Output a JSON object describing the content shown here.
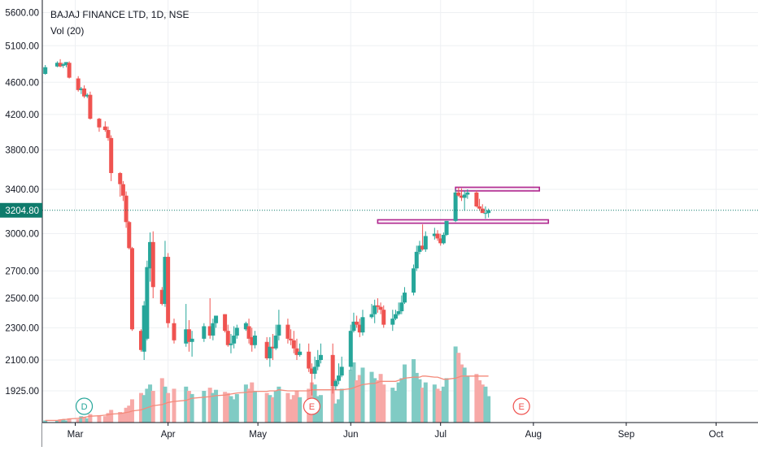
{
  "chart_data": {
    "type": "candlestick",
    "title": "BAJAJ FINANCE LTD, 1D, NSE",
    "volume_label": "Vol (20)",
    "y_ticks": [
      "5600.00",
      "5100.00",
      "4600.00",
      "4200.00",
      "3800.00",
      "3400.00",
      "3000.00",
      "2700.00",
      "2500.00",
      "2300.00",
      "2100.00",
      "1925.00"
    ],
    "y_log_scale": true,
    "ylim": [
      1760,
      5750
    ],
    "last_price": "3204.80",
    "x_ticks": [
      "Mar",
      "Apr",
      "May",
      "Jun",
      "Jul",
      "Aug",
      "Sep",
      "Oct"
    ],
    "x_tick_dates": [
      "2020-03-01",
      "2020-04-01",
      "2020-05-01",
      "2020-06-01",
      "2020-07-01",
      "2020-08-01",
      "2020-09-01",
      "2020-10-01"
    ],
    "xlim": [
      "2020-02-19",
      "2020-10-15"
    ],
    "grid": true,
    "colors": {
      "up": "#26a69a",
      "down": "#ef5350",
      "up_volume": "#80cbc4",
      "down_volume": "#f7a9a7",
      "volume_ma": "#f48a7a",
      "zone": "#b0278f",
      "zone_outer": "#c2185b",
      "price_line": "#0f7b6c"
    },
    "event_markers": [
      {
        "label": "D",
        "date": "2020-03-04",
        "kind": "dividend"
      },
      {
        "label": "E",
        "date": "2020-05-19",
        "kind": "earnings"
      },
      {
        "label": "E",
        "date": "2020-07-28",
        "kind": "earnings"
      }
    ],
    "zones": [
      {
        "name": "resistance",
        "date_from": "2020-07-06",
        "date_to": "2020-08-03",
        "price_top": 3420,
        "price_bottom": 3385
      },
      {
        "name": "support",
        "date_from": "2020-06-10",
        "date_to": "2020-08-06",
        "price_top": 3120,
        "price_bottom": 3090
      }
    ],
    "series": [
      {
        "date": [
          "2020-02-20",
          "2020-02-24",
          "2020-02-25",
          "2020-02-26",
          "2020-02-27",
          "2020-02-28",
          "2020-03-02",
          "2020-03-03",
          "2020-03-04",
          "2020-03-05",
          "2020-03-06",
          "2020-03-09",
          "2020-03-11",
          "2020-03-12",
          "2020-03-13",
          "2020-03-16",
          "2020-03-17",
          "2020-03-18",
          "2020-03-19",
          "2020-03-20",
          "2020-03-23",
          "2020-03-24",
          "2020-03-25",
          "2020-03-26",
          "2020-03-27",
          "2020-03-30",
          "2020-03-31",
          "2020-04-01",
          "2020-04-03",
          "2020-04-07",
          "2020-04-08",
          "2020-04-09",
          "2020-04-13",
          "2020-04-15",
          "2020-04-16",
          "2020-04-17",
          "2020-04-20",
          "2020-04-21",
          "2020-04-22",
          "2020-04-23",
          "2020-04-24",
          "2020-04-27",
          "2020-04-28",
          "2020-04-29",
          "2020-04-30",
          "2020-05-04",
          "2020-05-05",
          "2020-05-06",
          "2020-05-07",
          "2020-05-08",
          "2020-05-11",
          "2020-05-12",
          "2020-05-13",
          "2020-05-14",
          "2020-05-15",
          "2020-05-18",
          "2020-05-19",
          "2020-05-20",
          "2020-05-21",
          "2020-05-22",
          "2020-05-26",
          "2020-05-27",
          "2020-05-28",
          "2020-05-29",
          "2020-06-01",
          "2020-06-02",
          "2020-06-03",
          "2020-06-04",
          "2020-06-05",
          "2020-06-08",
          "2020-06-09",
          "2020-06-10",
          "2020-06-11",
          "2020-06-12",
          "2020-06-15",
          "2020-06-16",
          "2020-06-17",
          "2020-06-18",
          "2020-06-19",
          "2020-06-22",
          "2020-06-23",
          "2020-06-24",
          "2020-06-25",
          "2020-06-26",
          "2020-06-29",
          "2020-06-30",
          "2020-07-01",
          "2020-07-02",
          "2020-07-03",
          "2020-07-06",
          "2020-07-07",
          "2020-07-08",
          "2020-07-09",
          "2020-07-10",
          "2020-07-13",
          "2020-07-14",
          "2020-07-15",
          "2020-07-16",
          "2020-07-17"
        ],
        "open": [
          4710,
          4810,
          4860,
          4820,
          4830,
          4860,
          4650,
          4500,
          4520,
          4420,
          4440,
          4150,
          4060,
          4020,
          3930,
          3560,
          3450,
          3340,
          3100,
          2880,
          2280,
          2150,
          2230,
          2720,
          2930,
          2560,
          2460,
          2810,
          2330,
          2200,
          2290,
          2210,
          2230,
          2310,
          2250,
          2330,
          2390,
          2280,
          2190,
          2200,
          2250,
          2290,
          2310,
          2240,
          2190,
          2210,
          2110,
          2180,
          2170,
          2250,
          2320,
          2230,
          2220,
          2170,
          2130,
          2150,
          2050,
          2020,
          2060,
          2100,
          2130,
          1950,
          1980,
          2010,
          2060,
          2280,
          2340,
          2320,
          2270,
          2370,
          2390,
          2450,
          2440,
          2420,
          2320,
          2360,
          2390,
          2410,
          2470,
          2540,
          2720,
          2850,
          2900,
          2870,
          2980,
          3000,
          2960,
          2920,
          2990,
          3110,
          3370,
          3340,
          3320,
          3350,
          3370,
          3240,
          3220,
          3180,
          3180
        ],
        "high": [
          4830,
          4880,
          4910,
          4860,
          4870,
          4880,
          4680,
          4540,
          4560,
          4460,
          4480,
          4160,
          4120,
          4060,
          3960,
          3570,
          3480,
          3380,
          3110,
          2890,
          2290,
          2480,
          2780,
          3010,
          3020,
          2580,
          2940,
          2840,
          2360,
          2460,
          2350,
          2280,
          2330,
          2500,
          2360,
          2380,
          2390,
          2320,
          2260,
          2310,
          2320,
          2340,
          2360,
          2300,
          2280,
          2240,
          2240,
          2260,
          2320,
          2420,
          2360,
          2290,
          2280,
          2230,
          2200,
          2200,
          2080,
          2120,
          2160,
          2200,
          2200,
          1990,
          2080,
          2120,
          2320,
          2400,
          2380,
          2360,
          2420,
          2460,
          2490,
          2500,
          2470,
          2450,
          2420,
          2420,
          2470,
          2520,
          2580,
          2750,
          2900,
          2940,
          3080,
          3020,
          3050,
          3030,
          3000,
          3010,
          3090,
          3400,
          3420,
          3410,
          3390,
          3400,
          3390,
          3310,
          3260,
          3240,
          3220
        ],
        "low": [
          4700,
          4800,
          4800,
          4790,
          4800,
          4650,
          4480,
          4450,
          4400,
          4400,
          4140,
          4000,
          4000,
          3900,
          3480,
          3330,
          3290,
          3050,
          2870,
          2280,
          2150,
          2100,
          2220,
          2620,
          2500,
          2450,
          2440,
          2300,
          2200,
          2180,
          2150,
          2120,
          2210,
          2230,
          2220,
          2300,
          2270,
          2180,
          2140,
          2170,
          2230,
          2280,
          2200,
          2150,
          2170,
          2100,
          2060,
          2100,
          2160,
          2220,
          2200,
          2190,
          2140,
          2100,
          2120,
          2030,
          1900,
          1990,
          2040,
          2080,
          1910,
          1930,
          1960,
          2000,
          2040,
          2270,
          2300,
          2240,
          2250,
          2360,
          2330,
          2400,
          2390,
          2300,
          2280,
          2350,
          2380,
          2390,
          2460,
          2520,
          2700,
          2830,
          2860,
          2850,
          2950,
          2940,
          2900,
          2910,
          2980,
          3100,
          3330,
          3290,
          3200,
          3310,
          3230,
          3200,
          3180,
          3130,
          3140
        ],
        "close": [
          4800,
          4860,
          4810,
          4840,
          4870,
          4660,
          4500,
          4520,
          4420,
          4440,
          4150,
          4050,
          4020,
          3930,
          3560,
          3450,
          3340,
          3100,
          2880,
          2290,
          2160,
          2450,
          2730,
          2930,
          2580,
          2460,
          2810,
          2330,
          2220,
          2290,
          2210,
          2230,
          2310,
          2250,
          2330,
          2380,
          2280,
          2190,
          2200,
          2250,
          2300,
          2330,
          2230,
          2190,
          2250,
          2110,
          2180,
          2170,
          2250,
          2320,
          2230,
          2220,
          2170,
          2130,
          2150,
          2050,
          2020,
          2060,
          2100,
          2130,
          1950,
          1980,
          2010,
          2060,
          2280,
          2340,
          2320,
          2270,
          2370,
          2390,
          2450,
          2440,
          2420,
          2320,
          2360,
          2390,
          2410,
          2470,
          2540,
          2720,
          2850,
          2900,
          2870,
          2980,
          3000,
          2960,
          2920,
          2990,
          3110,
          3370,
          3340,
          3320,
          3350,
          3370,
          3240,
          3220,
          3180,
          3180,
          3205
        ]
      },
      {
        "name": "Vol (20)",
        "volume_relative": [
          0.02,
          0.02,
          0.03,
          0.03,
          0.02,
          0.04,
          0.03,
          0.06,
          0.05,
          0.04,
          0.08,
          0.07,
          0.06,
          0.09,
          0.12,
          0.1,
          0.09,
          0.14,
          0.16,
          0.22,
          0.28,
          0.26,
          0.32,
          0.36,
          0.3,
          0.42,
          0.34,
          0.28,
          0.32,
          0.34,
          0.3,
          0.27,
          0.3,
          0.33,
          0.28,
          0.31,
          0.29,
          0.28,
          0.25,
          0.22,
          0.27,
          0.36,
          0.32,
          0.38,
          0.3,
          0.28,
          0.26,
          0.24,
          0.3,
          0.34,
          0.28,
          0.22,
          0.26,
          0.3,
          0.24,
          0.32,
          0.38,
          0.36,
          0.25,
          0.26,
          0.34,
          0.18,
          0.22,
          0.32,
          0.5,
          0.57,
          0.4,
          0.45,
          0.52,
          0.48,
          0.42,
          0.4,
          0.46,
          0.36,
          0.33,
          0.3,
          0.38,
          0.42,
          0.55,
          0.6,
          0.47,
          0.41,
          0.33,
          0.38,
          0.36,
          0.32,
          0.3,
          0.34,
          0.42,
          0.72,
          0.66,
          0.55,
          0.52,
          0.44,
          0.46,
          0.4,
          0.36,
          0.34,
          0.25
        ],
        "volume_ma_relative": [
          0.02,
          0.02,
          0.025,
          0.03,
          0.03,
          0.035,
          0.04,
          0.045,
          0.05,
          0.055,
          0.06,
          0.065,
          0.07,
          0.075,
          0.08,
          0.085,
          0.09,
          0.095,
          0.1,
          0.11,
          0.12,
          0.13,
          0.14,
          0.15,
          0.16,
          0.17,
          0.18,
          0.19,
          0.2,
          0.21,
          0.22,
          0.23,
          0.24,
          0.245,
          0.25,
          0.255,
          0.26,
          0.265,
          0.27,
          0.275,
          0.28,
          0.285,
          0.29,
          0.29,
          0.295,
          0.295,
          0.3,
          0.3,
          0.3,
          0.31,
          0.3,
          0.3,
          0.3,
          0.3,
          0.3,
          0.3,
          0.31,
          0.31,
          0.31,
          0.31,
          0.31,
          0.31,
          0.31,
          0.31,
          0.32,
          0.33,
          0.34,
          0.35,
          0.36,
          0.37,
          0.37,
          0.38,
          0.39,
          0.39,
          0.39,
          0.39,
          0.4,
          0.41,
          0.42,
          0.43,
          0.43,
          0.43,
          0.44,
          0.44,
          0.43,
          0.43,
          0.42,
          0.41,
          0.41,
          0.42,
          0.43,
          0.44,
          0.44,
          0.44,
          0.44,
          0.44,
          0.44,
          0.44,
          0.44
        ]
      }
    ]
  }
}
